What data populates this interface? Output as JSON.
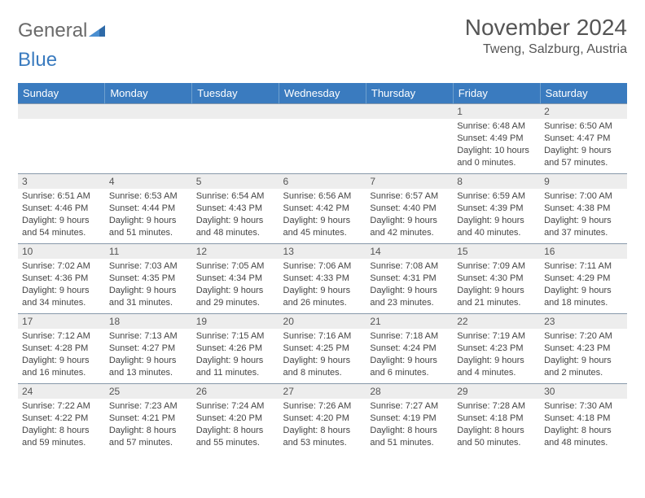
{
  "brand": {
    "g": "General",
    "b": "Blue"
  },
  "title": "November 2024",
  "location": "Tweng, Salzburg, Austria",
  "colors": {
    "header_bg": "#3a7bbf",
    "daynum_bg": "#ededed",
    "border": "#8899aa",
    "text": "#444444",
    "title": "#555555"
  },
  "dayNames": [
    "Sunday",
    "Monday",
    "Tuesday",
    "Wednesday",
    "Thursday",
    "Friday",
    "Saturday"
  ],
  "weeks": [
    [
      null,
      null,
      null,
      null,
      null,
      {
        "n": "1",
        "sr": "6:48 AM",
        "ss": "4:49 PM",
        "dl": "10 hours and 0 minutes."
      },
      {
        "n": "2",
        "sr": "6:50 AM",
        "ss": "4:47 PM",
        "dl": "9 hours and 57 minutes."
      }
    ],
    [
      {
        "n": "3",
        "sr": "6:51 AM",
        "ss": "4:46 PM",
        "dl": "9 hours and 54 minutes."
      },
      {
        "n": "4",
        "sr": "6:53 AM",
        "ss": "4:44 PM",
        "dl": "9 hours and 51 minutes."
      },
      {
        "n": "5",
        "sr": "6:54 AM",
        "ss": "4:43 PM",
        "dl": "9 hours and 48 minutes."
      },
      {
        "n": "6",
        "sr": "6:56 AM",
        "ss": "4:42 PM",
        "dl": "9 hours and 45 minutes."
      },
      {
        "n": "7",
        "sr": "6:57 AM",
        "ss": "4:40 PM",
        "dl": "9 hours and 42 minutes."
      },
      {
        "n": "8",
        "sr": "6:59 AM",
        "ss": "4:39 PM",
        "dl": "9 hours and 40 minutes."
      },
      {
        "n": "9",
        "sr": "7:00 AM",
        "ss": "4:38 PM",
        "dl": "9 hours and 37 minutes."
      }
    ],
    [
      {
        "n": "10",
        "sr": "7:02 AM",
        "ss": "4:36 PM",
        "dl": "9 hours and 34 minutes."
      },
      {
        "n": "11",
        "sr": "7:03 AM",
        "ss": "4:35 PM",
        "dl": "9 hours and 31 minutes."
      },
      {
        "n": "12",
        "sr": "7:05 AM",
        "ss": "4:34 PM",
        "dl": "9 hours and 29 minutes."
      },
      {
        "n": "13",
        "sr": "7:06 AM",
        "ss": "4:33 PM",
        "dl": "9 hours and 26 minutes."
      },
      {
        "n": "14",
        "sr": "7:08 AM",
        "ss": "4:31 PM",
        "dl": "9 hours and 23 minutes."
      },
      {
        "n": "15",
        "sr": "7:09 AM",
        "ss": "4:30 PM",
        "dl": "9 hours and 21 minutes."
      },
      {
        "n": "16",
        "sr": "7:11 AM",
        "ss": "4:29 PM",
        "dl": "9 hours and 18 minutes."
      }
    ],
    [
      {
        "n": "17",
        "sr": "7:12 AM",
        "ss": "4:28 PM",
        "dl": "9 hours and 16 minutes."
      },
      {
        "n": "18",
        "sr": "7:13 AM",
        "ss": "4:27 PM",
        "dl": "9 hours and 13 minutes."
      },
      {
        "n": "19",
        "sr": "7:15 AM",
        "ss": "4:26 PM",
        "dl": "9 hours and 11 minutes."
      },
      {
        "n": "20",
        "sr": "7:16 AM",
        "ss": "4:25 PM",
        "dl": "9 hours and 8 minutes."
      },
      {
        "n": "21",
        "sr": "7:18 AM",
        "ss": "4:24 PM",
        "dl": "9 hours and 6 minutes."
      },
      {
        "n": "22",
        "sr": "7:19 AM",
        "ss": "4:23 PM",
        "dl": "9 hours and 4 minutes."
      },
      {
        "n": "23",
        "sr": "7:20 AM",
        "ss": "4:23 PM",
        "dl": "9 hours and 2 minutes."
      }
    ],
    [
      {
        "n": "24",
        "sr": "7:22 AM",
        "ss": "4:22 PM",
        "dl": "8 hours and 59 minutes."
      },
      {
        "n": "25",
        "sr": "7:23 AM",
        "ss": "4:21 PM",
        "dl": "8 hours and 57 minutes."
      },
      {
        "n": "26",
        "sr": "7:24 AM",
        "ss": "4:20 PM",
        "dl": "8 hours and 55 minutes."
      },
      {
        "n": "27",
        "sr": "7:26 AM",
        "ss": "4:20 PM",
        "dl": "8 hours and 53 minutes."
      },
      {
        "n": "28",
        "sr": "7:27 AM",
        "ss": "4:19 PM",
        "dl": "8 hours and 51 minutes."
      },
      {
        "n": "29",
        "sr": "7:28 AM",
        "ss": "4:18 PM",
        "dl": "8 hours and 50 minutes."
      },
      {
        "n": "30",
        "sr": "7:30 AM",
        "ss": "4:18 PM",
        "dl": "8 hours and 48 minutes."
      }
    ]
  ],
  "labels": {
    "sunrise": "Sunrise: ",
    "sunset": "Sunset: ",
    "daylight": "Daylight: "
  }
}
